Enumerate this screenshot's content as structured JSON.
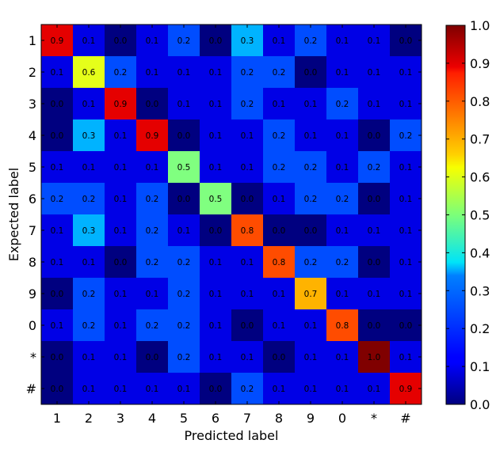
{
  "chart_data": {
    "type": "heatmap",
    "title": "",
    "xlabel": "Predicted label",
    "ylabel": "Expected label",
    "x_categories": [
      "1",
      "2",
      "3",
      "4",
      "5",
      "6",
      "7",
      "8",
      "9",
      "0",
      "*",
      "#"
    ],
    "y_categories": [
      "1",
      "2",
      "3",
      "4",
      "5",
      "6",
      "7",
      "8",
      "9",
      "0",
      "*",
      "#"
    ],
    "values": [
      [
        0.9,
        0.1,
        0.0,
        0.1,
        0.2,
        0.0,
        0.3,
        0.1,
        0.2,
        0.1,
        0.1,
        0.0
      ],
      [
        0.1,
        0.6,
        0.2,
        0.1,
        0.1,
        0.1,
        0.2,
        0.2,
        0.0,
        0.1,
        0.1,
        0.1
      ],
      [
        0.0,
        0.1,
        0.9,
        0.0,
        0.1,
        0.1,
        0.2,
        0.1,
        0.1,
        0.2,
        0.1,
        0.1
      ],
      [
        0.0,
        0.3,
        0.1,
        0.9,
        0.0,
        0.1,
        0.1,
        0.2,
        0.1,
        0.1,
        0.0,
        0.2
      ],
      [
        0.1,
        0.1,
        0.1,
        0.1,
        0.5,
        0.1,
        0.1,
        0.2,
        0.2,
        0.1,
        0.2,
        0.1
      ],
      [
        0.2,
        0.2,
        0.1,
        0.2,
        0.0,
        0.5,
        0.0,
        0.1,
        0.2,
        0.2,
        0.0,
        0.1
      ],
      [
        0.1,
        0.3,
        0.1,
        0.2,
        0.1,
        0.0,
        0.8,
        0.0,
        0.0,
        0.1,
        0.1,
        0.1
      ],
      [
        0.1,
        0.1,
        0.0,
        0.2,
        0.2,
        0.1,
        0.1,
        0.8,
        0.2,
        0.2,
        0.0,
        0.1
      ],
      [
        0.0,
        0.2,
        0.1,
        0.1,
        0.2,
        0.1,
        0.1,
        0.1,
        0.7,
        0.1,
        0.1,
        0.1
      ],
      [
        0.1,
        0.2,
        0.1,
        0.2,
        0.2,
        0.1,
        0.0,
        0.1,
        0.1,
        0.8,
        0.0,
        0.0
      ],
      [
        0.0,
        0.1,
        0.1,
        0.0,
        0.2,
        0.1,
        0.1,
        0.0,
        0.1,
        0.1,
        1.0,
        0.1
      ],
      [
        0.0,
        0.1,
        0.1,
        0.1,
        0.1,
        0.0,
        0.2,
        0.1,
        0.1,
        0.1,
        0.1,
        0.9
      ]
    ],
    "display_values": [
      [
        "0.9",
        "0.1",
        "0.0",
        "0.1",
        "0.2",
        "0.0",
        "0.3",
        "0.1",
        "0.2",
        "0.1",
        "0.1",
        "0.0"
      ],
      [
        "0.1",
        "0.6",
        "0.2",
        "0.1",
        "0.1",
        "0.1",
        "0.2",
        "0.2",
        "0.0",
        "0.1",
        "0.1",
        "0.1"
      ],
      [
        "0.0",
        "0.1",
        "0.9",
        "0.0",
        "0.1",
        "0.1",
        "0.2",
        "0.1",
        "0.1",
        "0.2",
        "0.1",
        "0.1"
      ],
      [
        "0.0",
        "0.3",
        "0.1",
        "0.9",
        "0.0",
        "0.1",
        "0.1",
        "0.2",
        "0.1",
        "0.1",
        "0.0",
        "0.2"
      ],
      [
        "0.1",
        "0.1",
        "0.1",
        "0.1",
        "0.5",
        "0.1",
        "0.1",
        "0.2",
        "0.2",
        "0.1",
        "0.2",
        "0.1"
      ],
      [
        "0.2",
        "0.2",
        "0.1",
        "0.2",
        "0.0",
        "0.5",
        "0.0",
        "0.1",
        "0.2",
        "0.2",
        "0.0",
        "0.1"
      ],
      [
        "0.1",
        "0.3",
        "0.1",
        "0.2",
        "0.1",
        "0.0",
        "0.8",
        "0.0",
        "0.0",
        "0.1",
        "0.1",
        "0.1"
      ],
      [
        "0.1",
        "0.1",
        "0.0",
        "0.2",
        "0.2",
        "0.1",
        "0.1",
        "0.8",
        "0.2",
        "0.2",
        "0.0",
        "0.1"
      ],
      [
        "0.0",
        "0.2",
        "0.1",
        "0.1",
        "0.2",
        "0.1",
        "0.1",
        "0.1",
        "0.7",
        "0.1",
        "0.1",
        "0.1"
      ],
      [
        "0.1",
        "0.2",
        "0.1",
        "0.2",
        "0.2",
        "0.1",
        "0.0",
        "0.1",
        "0.1",
        "0.8",
        "0.0",
        "0.0"
      ],
      [
        "0.0",
        "0.1",
        "0.1",
        "0.0",
        "0.2",
        "0.1",
        "0.1",
        "0.0",
        "0.1",
        "0.1",
        "1.0",
        "0.1"
      ],
      [
        "0.0",
        "0.1",
        "0.1",
        "0.1",
        "0.1",
        "0.0",
        "0.2",
        "0.1",
        "0.1",
        "0.1",
        "0.1",
        "0.9"
      ]
    ],
    "colormap": "jet",
    "colorbar": {
      "range": [
        0.0,
        1.0
      ],
      "ticks": [
        0.0,
        0.1,
        0.2,
        0.3,
        0.4,
        0.5,
        0.6,
        0.7,
        0.8,
        0.9,
        1.0
      ],
      "tick_labels": [
        "0.0",
        "0.1",
        "0.2",
        "0.3",
        "0.4",
        "0.5",
        "0.6",
        "0.7",
        "0.8",
        "0.9",
        "1.0"
      ]
    },
    "grid": false,
    "legend": "colorbar-right"
  }
}
